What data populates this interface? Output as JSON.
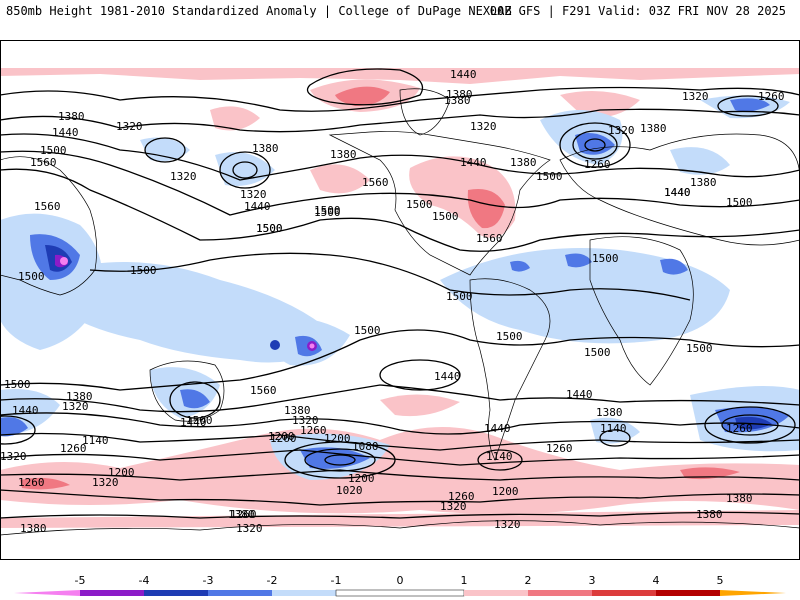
{
  "header": {
    "title_left": "850mb Height 1981-2010 Standardized Anomaly | College of DuPage NEXLAB",
    "title_right": "00Z GFS | F291 Valid: 03Z FRI NOV 28 2025"
  },
  "colors": {
    "neg5": "#f57ff0",
    "neg4": "#8c1cc8",
    "neg3": "#1e3cb4",
    "neg2": "#5078e6",
    "neg1": "#c3dcfa",
    "zero": "#ffffff",
    "pos1": "#fac3c8",
    "pos2": "#f07882",
    "pos3": "#dc3c3c",
    "pos4": "#b40000",
    "pos5": "#ffa500"
  },
  "colorbar": {
    "ticks": [
      "-5",
      "-4",
      "-3",
      "-2",
      "-1",
      "0",
      "1",
      "2",
      "3",
      "4",
      "5"
    ]
  },
  "contour_labels": [
    {
      "id": "c1",
      "text": "1440"
    },
    {
      "id": "c2",
      "text": "1380"
    },
    {
      "id": "c3",
      "text": "1320"
    },
    {
      "id": "c4",
      "text": "1260"
    },
    {
      "id": "c5",
      "text": "1380"
    },
    {
      "id": "c6",
      "text": "1440"
    },
    {
      "id": "c7",
      "text": "1320"
    },
    {
      "id": "c8",
      "text": "1500"
    },
    {
      "id": "c9",
      "text": "1560"
    },
    {
      "id": "c10",
      "text": "1380"
    },
    {
      "id": "c11",
      "text": "1320"
    },
    {
      "id": "c12",
      "text": "1320"
    },
    {
      "id": "c13",
      "text": "1380"
    },
    {
      "id": "c14",
      "text": "1440"
    },
    {
      "id": "c15",
      "text": "1500"
    },
    {
      "id": "c16",
      "text": "1560"
    },
    {
      "id": "c17",
      "text": "1500"
    },
    {
      "id": "c18",
      "text": "1500"
    },
    {
      "id": "c19",
      "text": "1500"
    },
    {
      "id": "c20",
      "text": "1380"
    },
    {
      "id": "c21",
      "text": "1560"
    },
    {
      "id": "c22",
      "text": "1500"
    },
    {
      "id": "c23",
      "text": "1440"
    },
    {
      "id": "c24",
      "text": "1380"
    },
    {
      "id": "c25",
      "text": "1320"
    },
    {
      "id": "c26",
      "text": "1440"
    },
    {
      "id": "c27",
      "text": "1380"
    },
    {
      "id": "c28",
      "text": "1320"
    },
    {
      "id": "c29",
      "text": "1260"
    },
    {
      "id": "c30",
      "text": "1380"
    },
    {
      "id": "c31",
      "text": "1440"
    },
    {
      "id": "c32",
      "text": "1500"
    },
    {
      "id": "c33",
      "text": "1500"
    },
    {
      "id": "c34",
      "text": "1560"
    },
    {
      "id": "c35",
      "text": "1500"
    },
    {
      "id": "c36",
      "text": "1500"
    },
    {
      "id": "c37",
      "text": "1500"
    },
    {
      "id": "c38",
      "text": "1500"
    },
    {
      "id": "c39",
      "text": "1500"
    },
    {
      "id": "c40",
      "text": "1500"
    },
    {
      "id": "c41",
      "text": "1500"
    },
    {
      "id": "c42",
      "text": "1500"
    },
    {
      "id": "c43",
      "text": "1500"
    },
    {
      "id": "c44",
      "text": "1500"
    },
    {
      "id": "c45",
      "text": "1560"
    },
    {
      "id": "c46",
      "text": "1440"
    },
    {
      "id": "c47",
      "text": "1380"
    },
    {
      "id": "c48",
      "text": "1320"
    },
    {
      "id": "c49",
      "text": "1440"
    },
    {
      "id": "c50",
      "text": "1500"
    },
    {
      "id": "c51",
      "text": "1440"
    },
    {
      "id": "c52",
      "text": "1380"
    },
    {
      "id": "c53",
      "text": "1320"
    },
    {
      "id": "c54",
      "text": "1260"
    },
    {
      "id": "c55",
      "text": "1200"
    },
    {
      "id": "c56",
      "text": "1260"
    },
    {
      "id": "c57",
      "text": "1140"
    },
    {
      "id": "c58",
      "text": "1080"
    },
    {
      "id": "c59",
      "text": "1020"
    },
    {
      "id": "c60",
      "text": "1200"
    },
    {
      "id": "c61",
      "text": "1140"
    },
    {
      "id": "c62",
      "text": "1200"
    },
    {
      "id": "c63",
      "text": "1260"
    },
    {
      "id": "c64",
      "text": "1320"
    },
    {
      "id": "c65",
      "text": "1320"
    },
    {
      "id": "c66",
      "text": "1260"
    },
    {
      "id": "c67",
      "text": "1140"
    },
    {
      "id": "c68",
      "text": "1260"
    },
    {
      "id": "c69",
      "text": "1380"
    },
    {
      "id": "c70",
      "text": "1380"
    },
    {
      "id": "c71",
      "text": "1440"
    },
    {
      "id": "c72",
      "text": "1380"
    },
    {
      "id": "c73",
      "text": "1320"
    },
    {
      "id": "c74",
      "text": "1260"
    },
    {
      "id": "c75",
      "text": "1200"
    },
    {
      "id": "c76",
      "text": "1320"
    },
    {
      "id": "c77",
      "text": "1380"
    },
    {
      "id": "c78",
      "text": "1260"
    },
    {
      "id": "c79",
      "text": "1440"
    },
    {
      "id": "c80",
      "text": "1380"
    },
    {
      "id": "c81",
      "text": "1320"
    },
    {
      "id": "c82",
      "text": "1260"
    },
    {
      "id": "c83",
      "text": "1200"
    }
  ]
}
